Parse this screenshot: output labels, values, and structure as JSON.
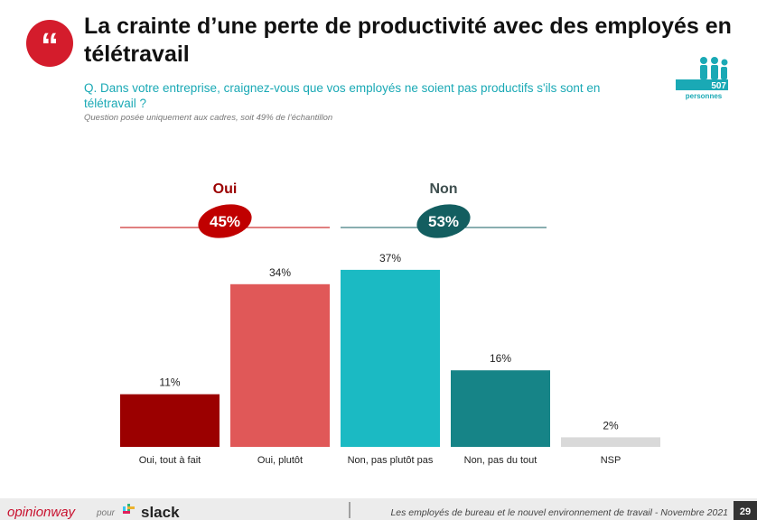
{
  "header": {
    "title": "La crainte d’une perte de productivité avec des employés en télétravail",
    "question": "Q. Dans votre entreprise, craignez-vous que vos employés ne soient pas productifs s'ils sont en télétravail ?",
    "note": "Question posée uniquement aux cadres, soit 49% de l’échantillon",
    "badge_count": "507",
    "badge_label": "personnes"
  },
  "chart_data": {
    "type": "bar",
    "categories": [
      "Oui, tout à fait",
      "Oui, plutôt",
      "Non, pas plutôt pas",
      "Non, pas du tout",
      "NSP"
    ],
    "values": [
      11,
      34,
      37,
      16,
      2
    ],
    "value_labels": [
      "11%",
      "34%",
      "37%",
      "16%",
      "2%"
    ],
    "colors": [
      "#9b0000",
      "#e05858",
      "#1bbac3",
      "#168487",
      "#d9d9d9"
    ],
    "groups": [
      {
        "name": "Oui",
        "total": 45,
        "total_label": "45%",
        "color": "#c00000",
        "name_color": "#9b0000"
      },
      {
        "name": "Non",
        "total": 53,
        "total_label": "53%",
        "color": "#135e60",
        "name_color": "#3f4f4f"
      }
    ]
  },
  "footer": {
    "brand": "opinionway",
    "partner_prefix": "pour",
    "partner": "slack",
    "text": "Les employés de bureau et le nouvel environnement de travail - Novembre 2021",
    "page": "29"
  }
}
